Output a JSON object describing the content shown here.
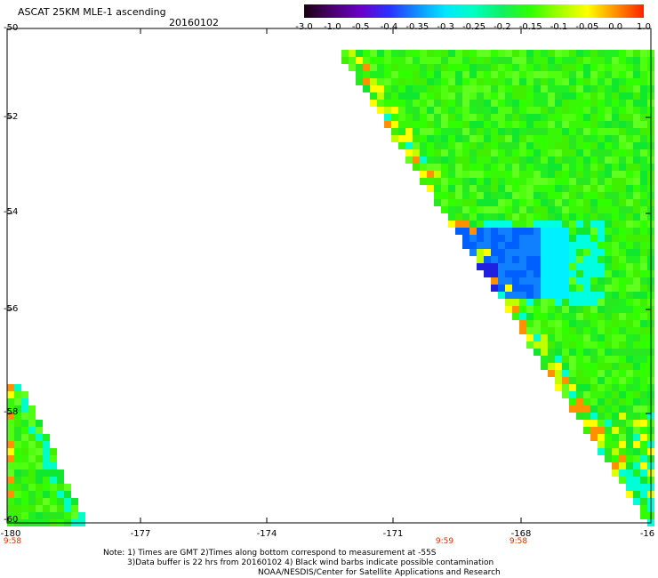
{
  "header": {
    "title": "ASCAT 25KM MLE-1 ascending",
    "date": "20160102"
  },
  "colorbar": {
    "labels": [
      "-3.0",
      "-1.0",
      "-0.5",
      "-0.4",
      "-0.35",
      "-0.3",
      "-0.25",
      "-0.2",
      "-0.15",
      "-0.1",
      "-0.05",
      "0.0",
      "1.0"
    ],
    "colors": [
      "#1a0010",
      "#4a0070",
      "#6a00c8",
      "#2a30ff",
      "#1090ff",
      "#00e8ff",
      "#00ffc0",
      "#10f060",
      "#30ff00",
      "#a0ff00",
      "#ffff00",
      "#ff9000",
      "#ff2000"
    ]
  },
  "axes": {
    "y_labels": [
      "-50",
      "-52",
      "-54",
      "-56",
      "-58",
      "-60"
    ],
    "x_labels": [
      "-180",
      "-177",
      "-174",
      "-171",
      "-168",
      "-16"
    ]
  },
  "time_labels": [
    "9:58",
    "9:59",
    "9:58"
  ],
  "notes": [
    "Note: 1) Times are GMT 2)Times along bottom correspond to measurement at -55S",
    "3)Data buffer is 22 hrs from 20160102 4) Black wind barbs indicate possible contamination",
    "NOAA/NESDIS/Center for Satellite Applications and Research"
  ]
}
